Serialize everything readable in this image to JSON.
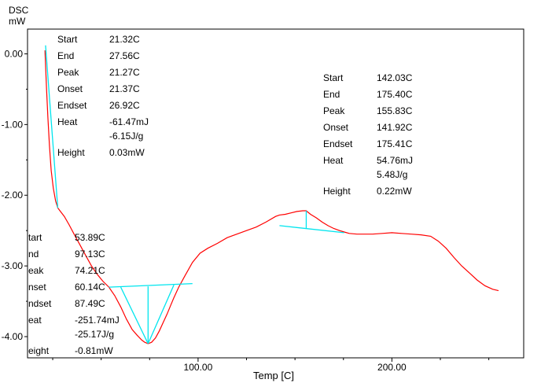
{
  "chart_data": {
    "type": "line",
    "title": "",
    "ylabel": "DSC",
    "yunit": "mW",
    "xlabel": "Temp [C]",
    "xlim": [
      12,
      268
    ],
    "ylim": [
      -4.3,
      0.35
    ],
    "xticks": [
      100,
      200
    ],
    "xtick_labels": [
      "100.00",
      "200.00"
    ],
    "yticks": [
      0,
      -1,
      -2,
      -3,
      -4
    ],
    "ytick_labels": [
      "0.00",
      "-1.00",
      "-2.00",
      "-3.00",
      "-4.00"
    ],
    "grid": false,
    "series": [
      {
        "color": "#ff0000",
        "x": [
          21.0,
          21.3,
          21.8,
          22.5,
          23.3,
          24.2,
          25.3,
          26.5,
          27.6,
          29.0,
          31.0,
          33.5,
          36.0,
          39.0,
          42.0,
          45.0,
          48.0,
          51.0,
          54.0,
          57.0,
          60.1,
          63.0,
          66.0,
          68.5,
          71.0,
          72.5,
          74.2,
          76.0,
          78.0,
          80.0,
          82.0,
          84.0,
          85.5,
          87.5,
          90.0,
          93.0,
          97.1,
          101.0,
          105.0,
          110.0,
          115.0,
          120.0,
          125.0,
          130.0,
          135.0,
          140.0,
          142.0,
          145.0,
          148.0,
          151.0,
          154.0,
          155.8,
          158.0,
          161.0,
          164.0,
          167.0,
          170.0,
          173.0,
          175.4,
          178.0,
          182.0,
          186.0,
          190.0,
          195.0,
          200.0,
          205.0,
          210.0,
          215.0,
          220.0,
          224.0,
          228.0,
          232.0,
          236.0,
          240.0,
          244.0,
          248.0,
          252.0,
          255.0
        ],
        "y": [
          0.05,
          -0.15,
          -0.5,
          -0.9,
          -1.3,
          -1.65,
          -1.9,
          -2.08,
          -2.18,
          -2.23,
          -2.3,
          -2.42,
          -2.55,
          -2.7,
          -2.85,
          -3.0,
          -3.12,
          -3.22,
          -3.3,
          -3.42,
          -3.58,
          -3.75,
          -3.9,
          -3.98,
          -4.05,
          -4.08,
          -4.1,
          -4.08,
          -4.02,
          -3.92,
          -3.8,
          -3.68,
          -3.58,
          -3.45,
          -3.3,
          -3.15,
          -2.95,
          -2.82,
          -2.75,
          -2.68,
          -2.6,
          -2.55,
          -2.5,
          -2.45,
          -2.38,
          -2.3,
          -2.28,
          -2.27,
          -2.25,
          -2.23,
          -2.22,
          -2.22,
          -2.27,
          -2.32,
          -2.38,
          -2.43,
          -2.47,
          -2.5,
          -2.52,
          -2.54,
          -2.55,
          -2.55,
          -2.55,
          -2.54,
          -2.53,
          -2.54,
          -2.55,
          -2.56,
          -2.58,
          -2.65,
          -2.75,
          -2.88,
          -3.0,
          -3.1,
          -3.2,
          -3.28,
          -3.33,
          -3.35
        ]
      }
    ],
    "baselines": [
      {
        "x1": 21.3,
        "y1": 0.12,
        "x2": 27.6,
        "y2": -2.18
      },
      {
        "x1": 54.0,
        "y1": -3.3,
        "x2": 97.1,
        "y2": -3.25
      },
      {
        "x1": 142.0,
        "y1": -2.43,
        "x2": 175.4,
        "y2": -2.53
      }
    ],
    "tangents": [
      {
        "x1": 60.1,
        "y1": -3.3,
        "x2": 74.2,
        "y2": -4.1
      },
      {
        "x1": 87.5,
        "y1": -3.27,
        "x2": 74.2,
        "y2": -4.1
      }
    ],
    "height_lines": [
      {
        "x": 74.2,
        "y1": -3.29,
        "y2": -4.1
      },
      {
        "x": 155.8,
        "y1": -2.47,
        "y2": -2.22
      }
    ],
    "annotations": [
      {
        "rows": [
          {
            "key": "Start",
            "value": "21.32C"
          },
          {
            "key": "End",
            "value": "27.56C"
          },
          {
            "key": "Peak",
            "value": "21.27C"
          },
          {
            "key": "Onset",
            "value": "21.37C"
          },
          {
            "key": "Endset",
            "value": "26.92C"
          },
          {
            "key": "Heat",
            "value": "-61.47mJ",
            "value2": "-6.15J/g"
          },
          {
            "key": "Height",
            "value": "0.03mW"
          }
        ]
      },
      {
        "rows": [
          {
            "key": "Start",
            "value": "142.03C"
          },
          {
            "key": "End",
            "value": "175.40C"
          },
          {
            "key": "Peak",
            "value": "155.83C"
          },
          {
            "key": "Onset",
            "value": "141.92C"
          },
          {
            "key": "Endset",
            "value": "175.41C"
          },
          {
            "key": "Heat",
            "value": "54.76mJ",
            "value2": "5.48J/g"
          },
          {
            "key": "Height",
            "value": "0.22mW"
          }
        ]
      },
      {
        "rows": [
          {
            "key": "tart",
            "value": "53.89C"
          },
          {
            "key": "nd",
            "value": "97.13C"
          },
          {
            "key": "eak",
            "value": "74.21C"
          },
          {
            "key": "nset",
            "value": "60.14C"
          },
          {
            "key": "ndset",
            "value": "87.49C"
          },
          {
            "key": "eat",
            "value": "-251.74mJ",
            "value2": "-25.17J/g"
          },
          {
            "key": "eight",
            "value": "-0.81mW"
          }
        ]
      }
    ],
    "colors": {
      "curve": "#ff0000",
      "analysis": "#00e5ee",
      "axis": "#000000"
    }
  }
}
